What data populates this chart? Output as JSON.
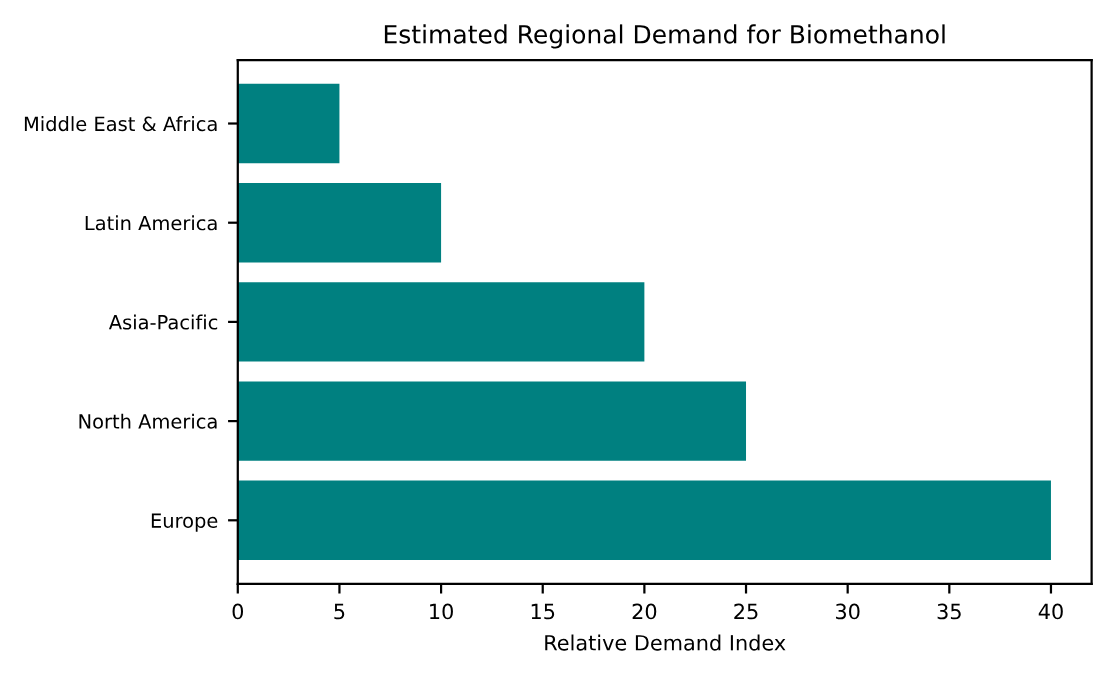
{
  "chart_data": {
    "type": "bar",
    "orientation": "horizontal",
    "title": "Estimated Regional Demand for Biomethanol",
    "xlabel": "Relative Demand Index",
    "categories": [
      "Middle East & Africa",
      "Latin America",
      "Asia-Pacific",
      "North America",
      "Europe"
    ],
    "values": [
      5,
      10,
      20,
      25,
      40
    ],
    "color": "#008080",
    "xlim": [
      0,
      42
    ],
    "xticks": [
      0,
      5,
      10,
      15,
      20,
      25,
      30,
      35,
      40
    ],
    "grid": false,
    "legend": false
  }
}
